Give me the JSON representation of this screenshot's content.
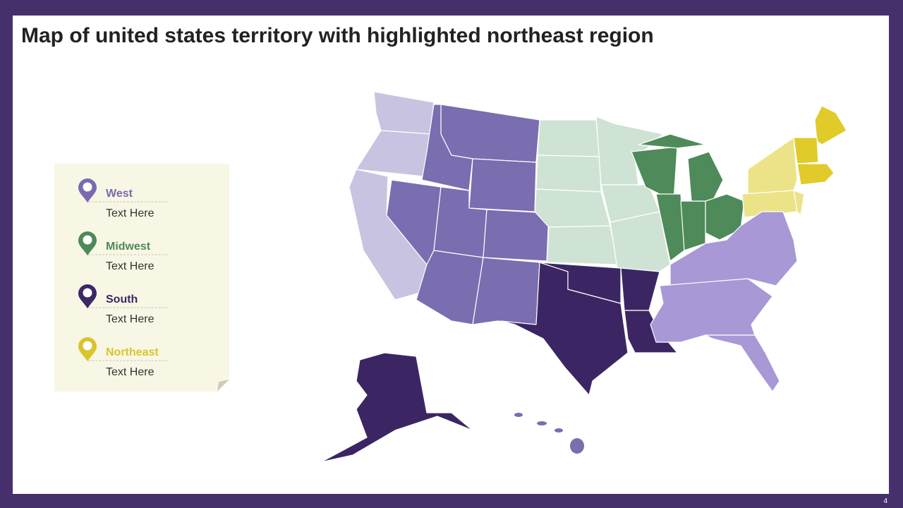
{
  "header": {
    "title": "Map of united states territory with highlighted northeast region"
  },
  "legend": {
    "items": [
      {
        "label": "West",
        "text": "Text Here",
        "color": "#7a6ab2"
      },
      {
        "label": "Midwest",
        "text": "Text Here",
        "color": "#4d8a58"
      },
      {
        "label": "South",
        "text": "Text Here",
        "color": "#3b2865"
      },
      {
        "label": "Northeast",
        "text": "Text Here",
        "color": "#d9c52c"
      }
    ]
  },
  "page_number": "4"
}
